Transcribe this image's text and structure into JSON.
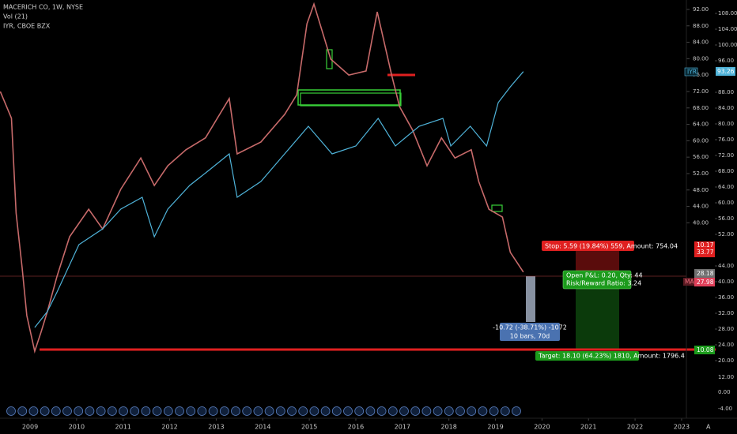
{
  "chart_data": {
    "type": "line",
    "header": {
      "title": "MACERICH CO, 1W, NYSE",
      "volume": "Vol (21)",
      "compare": "IYR, CBOE BZX"
    },
    "xlim": [
      2008.354,
      2023.103
    ],
    "xticks": [
      2009,
      2010,
      2011,
      2012,
      2013,
      2014,
      2015,
      2016,
      2017,
      2018,
      2019,
      2020,
      2021,
      2022,
      2023
    ],
    "ylim": [
      -5.7,
      94.3
    ],
    "yticks": [
      {
        "value": 92,
        "label": "92.00"
      },
      {
        "value": 88,
        "label": "88.00"
      },
      {
        "value": 84,
        "label": "84.00"
      },
      {
        "value": 80,
        "label": "80.00"
      },
      {
        "value": 76,
        "label": "76.00"
      },
      {
        "value": 72,
        "label": "72.00"
      },
      {
        "value": 68,
        "label": "68.00"
      },
      {
        "value": 64,
        "label": "64.00"
      },
      {
        "value": 60,
        "label": "60.00"
      },
      {
        "value": 56,
        "label": "56.00"
      },
      {
        "value": 52,
        "label": "52.00"
      },
      {
        "value": 48,
        "label": "48.00"
      },
      {
        "value": 44,
        "label": "44.00"
      },
      {
        "value": 40,
        "label": "40.00"
      }
    ],
    "y2lim": [
      7.4,
      111.4
    ],
    "y2ticks": [
      {
        "value": 108,
        "label": "108.00"
      },
      {
        "value": 104,
        "label": "104.00"
      },
      {
        "value": 100,
        "label": "100.00"
      },
      {
        "value": 96,
        "label": "96.00"
      },
      {
        "value": 88,
        "label": "88.00"
      },
      {
        "value": 84,
        "label": "84.00"
      },
      {
        "value": 80,
        "label": "80.00"
      },
      {
        "value": 76,
        "label": "76.00"
      },
      {
        "value": 72,
        "label": "72.00"
      },
      {
        "value": 68,
        "label": "68.00"
      },
      {
        "value": 64,
        "label": "64.00"
      },
      {
        "value": 60,
        "label": "60.00"
      },
      {
        "value": 56,
        "label": "56.00"
      },
      {
        "value": 52,
        "label": "52.00"
      },
      {
        "value": 44,
        "label": "44.00"
      },
      {
        "value": 40,
        "label": "40.00"
      },
      {
        "value": 36,
        "label": "36.00"
      },
      {
        "value": 32,
        "label": "32.00"
      },
      {
        "value": 28,
        "label": "28.00"
      },
      {
        "value": 24,
        "label": "24.00"
      },
      {
        "value": 20,
        "label": "20.00"
      }
    ],
    "volume_axis_labels": [
      "12.00",
      "0.00",
      "-4.00"
    ],
    "series": [
      {
        "name": "MAC",
        "color": "#c76a6a",
        "x": [
          2008.36,
          2008.6,
          2008.7,
          2008.83,
          2008.93,
          2009.1,
          2009.24,
          2009.37,
          2009.58,
          2009.85,
          2010.26,
          2010.56,
          2010.95,
          2011.38,
          2011.67,
          2011.96,
          2012.35,
          2012.77,
          2013.28,
          2013.45,
          2013.96,
          2014.47,
          2014.73,
          2014.95,
          2015.1,
          2015.46,
          2015.85,
          2016.22,
          2016.46,
          2016.77,
          2016.94,
          2017.22,
          2017.53,
          2017.84,
          2018.13,
          2018.48,
          2018.64,
          2018.86,
          2019.15,
          2019.32,
          2019.6
        ],
        "values": [
          72,
          65.5,
          42.4,
          29,
          17.4,
          8.7,
          13.5,
          18.3,
          27,
          36.6,
          43.3,
          38.5,
          48.2,
          55.8,
          49.1,
          53.9,
          57.8,
          60.7,
          70.3,
          56.8,
          59.7,
          66.4,
          71.2,
          88.5,
          93.3,
          79.9,
          76,
          77,
          91.4,
          76,
          68.3,
          62.6,
          53.9,
          60.7,
          55.8,
          57.8,
          50.1,
          43.3,
          41.4,
          32.8,
          27.98
        ]
      },
      {
        "name": "IYR",
        "color": "#4fb3d9",
        "axis": "y2",
        "x": [
          2009.1,
          2009.37,
          2009.58,
          2010.05,
          2010.56,
          2010.95,
          2011.41,
          2011.67,
          2011.96,
          2012.43,
          2012.86,
          2013.28,
          2013.45,
          2013.96,
          2014.47,
          2014.98,
          2015.49,
          2016.0,
          2016.48,
          2016.85,
          2017.36,
          2017.87,
          2018.04,
          2018.46,
          2018.81,
          2019.06,
          2019.32,
          2019.6
        ],
        "values": [
          28.4,
          32.4,
          37.4,
          49.4,
          53.4,
          58.4,
          61.4,
          51.4,
          58.4,
          64.4,
          68.4,
          72.4,
          61.4,
          65.4,
          72.4,
          79.4,
          72.4,
          74.4,
          81.4,
          74.4,
          79.4,
          81.4,
          74.4,
          79.4,
          74.4,
          85.4,
          89.4,
          93.26
        ]
      }
    ],
    "badges": {
      "iyr_name": "IYR",
      "iyr_price": "93.26",
      "stop_a": "10.17",
      "stop_b": "33.77",
      "entry": "28.18",
      "mac_name": "MAC",
      "mac_price": "27.98",
      "target": "10.08"
    },
    "trade": {
      "stop": "Stop: 5.59 (19.84%) 559, Amount: 754.04",
      "pnl": "Open P&L: 0.20, Qty: 44",
      "ratio": "Risk/Reward Ratio: 3.24",
      "target": "Target: 18.10 (64.23%) 1810, Amount: 1796.4"
    },
    "measure": {
      "change": "-10.72 (-38.71%) -1072",
      "bars": "10 bars, 70d"
    },
    "corner": "A"
  }
}
